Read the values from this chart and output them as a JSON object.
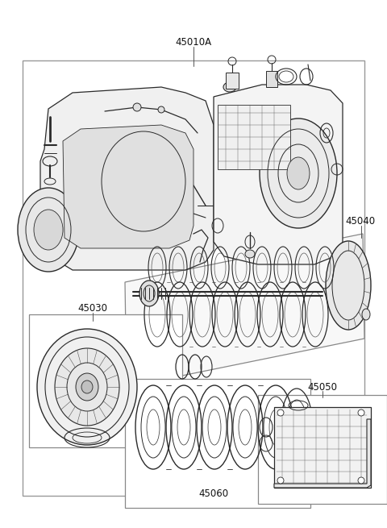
{
  "background_color": "#ffffff",
  "line_color": "#2a2a2a",
  "light_line": "#555555",
  "label_color": "#111111",
  "label_fontsize": 8.5,
  "fig_width": 4.8,
  "fig_height": 6.55,
  "dpi": 100
}
